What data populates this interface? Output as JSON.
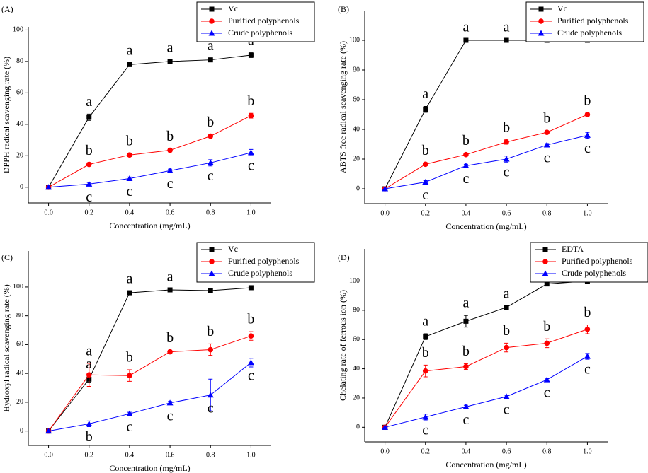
{
  "chart_data": [
    {
      "type": "line",
      "title": "(A)",
      "xlabel": "Concentration (mg/mL)",
      "ylabel": "DPPH radical scavenging rate (%)",
      "x": [
        0,
        0.2,
        0.4,
        0.6,
        0.8,
        1.0
      ],
      "xlim": [
        -0.1,
        1.1
      ],
      "xticks": [
        {
          "value": 0,
          "label": "0.0"
        },
        {
          "value": 0.2,
          "label": "0.2"
        },
        {
          "value": 0.4,
          "label": "0.4"
        },
        {
          "value": 0.6,
          "label": "0.6"
        },
        {
          "value": 0.8,
          "label": "0.8"
        },
        {
          "value": 1.0,
          "label": "1.0"
        }
      ],
      "ylim": [
        -10,
        102
      ],
      "yticks": [
        0,
        20,
        40,
        60,
        80,
        100
      ],
      "series": [
        {
          "name": "Vc",
          "color": "#000000",
          "marker": "square",
          "values": [
            0,
            44.5,
            78,
            80,
            81,
            84
          ],
          "errors": [
            null,
            2,
            1,
            1,
            1,
            1.5
          ],
          "labels": [
            null,
            "a",
            "a",
            "a",
            "a",
            "a"
          ]
        },
        {
          "name": "Purified polyphenols",
          "color": "#ff0000",
          "marker": "circle",
          "values": [
            0,
            14.5,
            20.5,
            23.5,
            32.5,
            45.5
          ],
          "errors": [
            null,
            1,
            1,
            1,
            1,
            1.5
          ],
          "labels": [
            null,
            "b",
            "b",
            "b",
            "b",
            "b"
          ]
        },
        {
          "name": "Crude polyphenols",
          "color": "#0000ff",
          "marker": "triangle",
          "values": [
            0,
            2,
            5.5,
            10.5,
            15.5,
            22
          ],
          "errors": [
            null,
            1,
            1,
            1,
            2,
            2
          ],
          "labels": [
            null,
            "c",
            "c",
            "c",
            "c",
            "c"
          ]
        }
      ]
    },
    {
      "type": "line",
      "title": "(B)",
      "xlabel": "Concentration (mg/mL)",
      "ylabel": "ABTS free radical scavenging rate (%)",
      "x": [
        0,
        0.2,
        0.4,
        0.6,
        0.8,
        1.0
      ],
      "xlim": [
        -0.1,
        1.1
      ],
      "xticks": [
        {
          "value": 0,
          "label": "0.0"
        },
        {
          "value": 0.2,
          "label": "0.2"
        },
        {
          "value": 0.4,
          "label": "0.4"
        },
        {
          "value": 0.6,
          "label": "0.6"
        },
        {
          "value": 0.8,
          "label": "0.8"
        },
        {
          "value": 1.0,
          "label": "1.0"
        }
      ],
      "ylim": [
        -10,
        120
      ],
      "yticks": [
        0,
        20,
        40,
        60,
        80,
        100
      ],
      "series": [
        {
          "name": "Vc",
          "color": "#000000",
          "marker": "square",
          "values": [
            0,
            53.5,
            100,
            100,
            100,
            100
          ],
          "errors": [
            null,
            2,
            0.5,
            0.5,
            0.5,
            0.5
          ],
          "labels": [
            null,
            "a",
            "a",
            "a",
            "a",
            "a"
          ]
        },
        {
          "name": "Purified polyphenols",
          "color": "#ff0000",
          "marker": "circle",
          "values": [
            0,
            16.5,
            23,
            31.5,
            38,
            50
          ],
          "errors": [
            null,
            1,
            1,
            1.5,
            1,
            1
          ],
          "labels": [
            null,
            "b",
            "b",
            "b",
            "b",
            "b"
          ]
        },
        {
          "name": "Crude polyphenols",
          "color": "#0000ff",
          "marker": "triangle",
          "values": [
            0,
            4.5,
            15.5,
            20,
            29.5,
            36
          ],
          "errors": [
            null,
            1,
            1,
            2,
            1,
            2
          ],
          "labels": [
            null,
            "c",
            "c",
            "c",
            "c",
            "c"
          ]
        }
      ]
    },
    {
      "type": "line",
      "title": "(C)",
      "xlabel": "Concentration (mg/mL)",
      "ylabel": "Hydroxyl radical scavenging rate (%)",
      "x": [
        0,
        0.2,
        0.4,
        0.6,
        0.8,
        1.0
      ],
      "xlim": [
        -0.1,
        1.1
      ],
      "xticks": [
        {
          "value": 0,
          "label": "0.0"
        },
        {
          "value": 0.2,
          "label": "0.2"
        },
        {
          "value": 0.4,
          "label": "0.4"
        },
        {
          "value": 0.6,
          "label": "0.6"
        },
        {
          "value": 0.8,
          "label": "0.8"
        },
        {
          "value": 1.0,
          "label": "1.0"
        }
      ],
      "ylim": [
        -10,
        125
      ],
      "yticks": [
        0,
        20,
        40,
        60,
        80,
        100
      ],
      "series": [
        {
          "name": "Vc",
          "color": "#000000",
          "marker": "square",
          "values": [
            0,
            36,
            96,
            98,
            97.5,
            99.5
          ],
          "errors": [
            null,
            2,
            1,
            0.5,
            0.5,
            0.5
          ],
          "labels": [
            null,
            "a",
            "a",
            "a",
            "a",
            "a"
          ]
        },
        {
          "name": "Purified polyphenols",
          "color": "#ff0000",
          "marker": "circle",
          "values": [
            0,
            39,
            38.5,
            55,
            56.5,
            66
          ],
          "errors": [
            null,
            8,
            4,
            1,
            4,
            3
          ],
          "labels": [
            null,
            "a",
            "b",
            "b",
            "b",
            "b"
          ]
        },
        {
          "name": "Crude polyphenols",
          "color": "#0000ff",
          "marker": "triangle",
          "values": [
            0,
            5,
            12,
            19.5,
            25,
            47.5
          ],
          "errors": [
            null,
            2,
            1,
            1,
            11,
            3
          ],
          "labels": [
            null,
            "b",
            "c",
            "c",
            "c",
            "c"
          ]
        }
      ]
    },
    {
      "type": "line",
      "title": "(D)",
      "xlabel": "Concentration (mg/mL)",
      "ylabel": "Chelating rate of ferrous ion (%)",
      "x": [
        0,
        0.2,
        0.4,
        0.6,
        0.8,
        1.0
      ],
      "xlim": [
        -0.1,
        1.1
      ],
      "xticks": [
        {
          "value": 0,
          "label": "0.0"
        },
        {
          "value": 0.2,
          "label": "0.2"
        },
        {
          "value": 0.4,
          "label": "0.4"
        },
        {
          "value": 0.6,
          "label": "0.6"
        },
        {
          "value": 0.8,
          "label": "0.8"
        },
        {
          "value": 1.0,
          "label": "1.0"
        }
      ],
      "ylim": [
        -10,
        122
      ],
      "yticks": [
        0,
        20,
        40,
        60,
        80,
        100
      ],
      "series": [
        {
          "name": "EDTA",
          "color": "#000000",
          "marker": "square",
          "values": [
            0,
            62,
            72.5,
            82,
            98,
            100
          ],
          "errors": [
            null,
            2,
            4,
            1,
            1,
            0.5
          ],
          "labels": [
            null,
            "a",
            "a",
            "a",
            "a",
            "a"
          ]
        },
        {
          "name": "Purified polyphenols",
          "color": "#ff0000",
          "marker": "circle",
          "values": [
            0,
            38.5,
            41.5,
            54.5,
            57.5,
            67
          ],
          "errors": [
            null,
            4,
            2,
            3,
            3,
            3
          ],
          "labels": [
            null,
            "b",
            "b",
            "b",
            "b",
            "b"
          ]
        },
        {
          "name": "Crude polyphenols",
          "color": "#0000ff",
          "marker": "triangle",
          "values": [
            0,
            7,
            14,
            21,
            32.5,
            48.5
          ],
          "errors": [
            null,
            2,
            1,
            1,
            1,
            2
          ],
          "labels": [
            null,
            "c",
            "c",
            "c",
            "c",
            "c"
          ]
        }
      ]
    }
  ]
}
